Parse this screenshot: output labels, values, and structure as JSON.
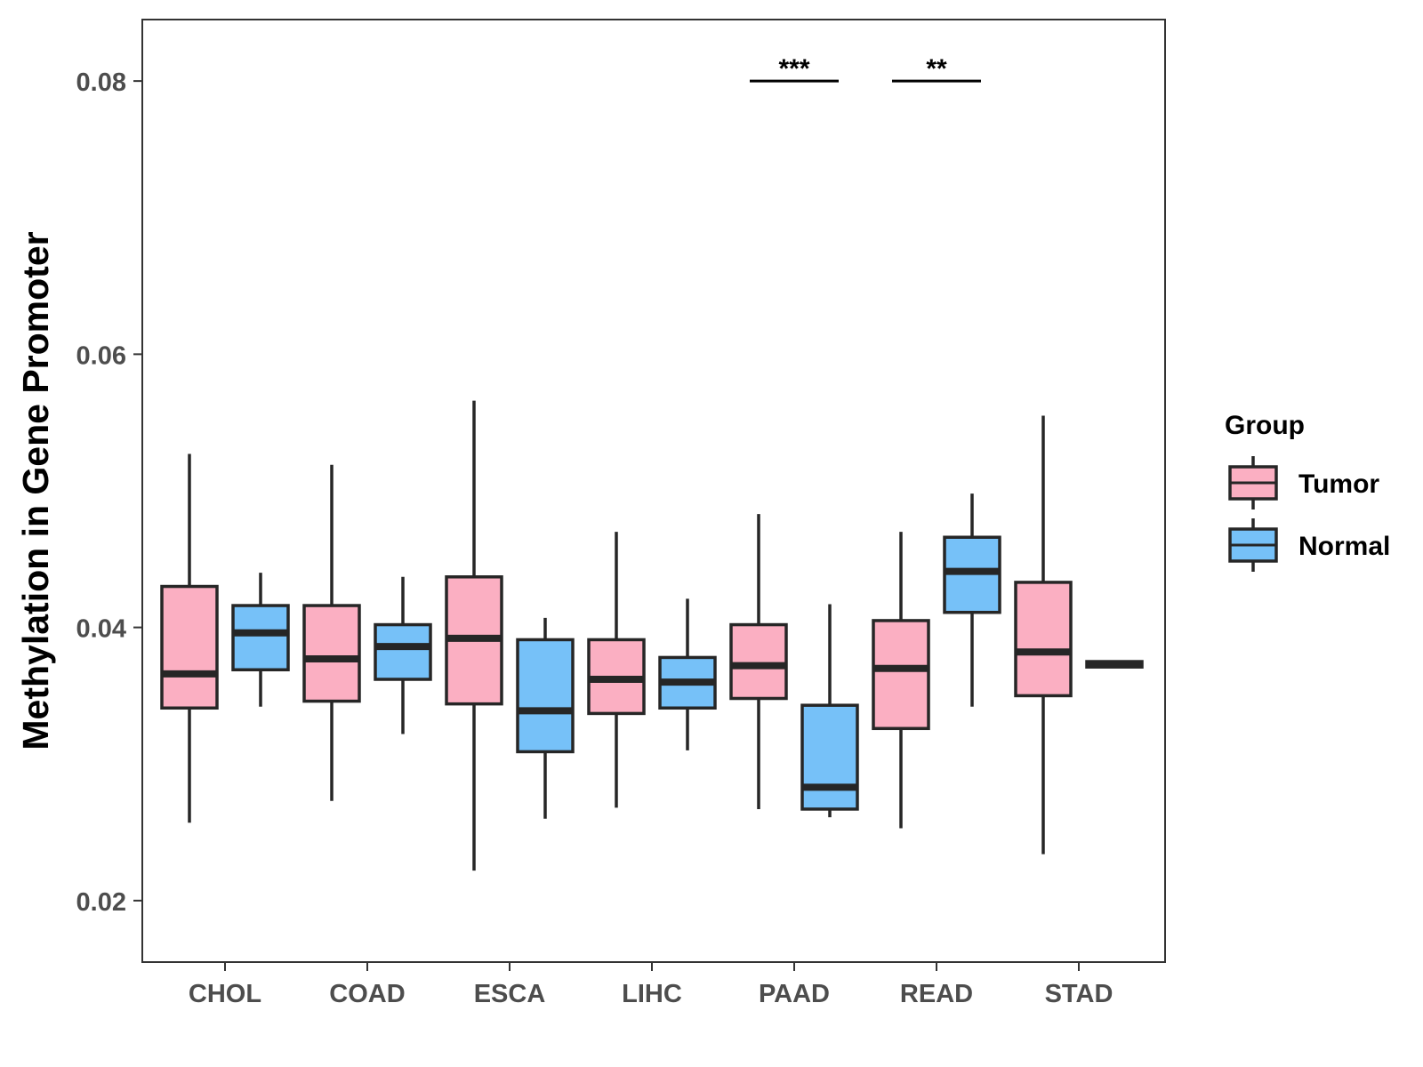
{
  "chart_data": {
    "type": "boxplot",
    "title": "",
    "xlabel": "",
    "ylabel": "Methylation in Gene Promoter",
    "ylim": [
      0.0155,
      0.0845
    ],
    "yticks": [
      0.02,
      0.04,
      0.06,
      0.08
    ],
    "ytick_labels": [
      "0.02",
      "0.04",
      "0.06",
      "0.08"
    ],
    "categories": [
      "CHOL",
      "COAD",
      "ESCA",
      "LIHC",
      "PAAD",
      "READ",
      "STAD"
    ],
    "grid": false,
    "legend": {
      "title": "Group",
      "position": "right",
      "entries": [
        {
          "name": "Tumor",
          "color": "#fbafc2"
        },
        {
          "name": "Normal",
          "color": "#76c1f8"
        }
      ]
    },
    "series": [
      {
        "name": "Tumor",
        "color": "#fbafc2",
        "boxes": [
          {
            "category": "CHOL",
            "whisker_low": 0.0257,
            "q1": 0.0341,
            "median": 0.0366,
            "q3": 0.043,
            "whisker_high": 0.0527
          },
          {
            "category": "COAD",
            "whisker_low": 0.0273,
            "q1": 0.0346,
            "median": 0.0377,
            "q3": 0.0416,
            "whisker_high": 0.0519
          },
          {
            "category": "ESCA",
            "whisker_low": 0.0222,
            "q1": 0.0344,
            "median": 0.0392,
            "q3": 0.0437,
            "whisker_high": 0.0566
          },
          {
            "category": "LIHC",
            "whisker_low": 0.0268,
            "q1": 0.0337,
            "median": 0.0362,
            "q3": 0.0391,
            "whisker_high": 0.047
          },
          {
            "category": "PAAD",
            "whisker_low": 0.0267,
            "q1": 0.0348,
            "median": 0.0372,
            "q3": 0.0402,
            "whisker_high": 0.0483
          },
          {
            "category": "READ",
            "whisker_low": 0.0253,
            "q1": 0.0326,
            "median": 0.037,
            "q3": 0.0405,
            "whisker_high": 0.047
          },
          {
            "category": "STAD",
            "whisker_low": 0.0234,
            "q1": 0.035,
            "median": 0.0382,
            "q3": 0.0433,
            "whisker_high": 0.0555
          }
        ]
      },
      {
        "name": "Normal",
        "color": "#76c1f8",
        "boxes": [
          {
            "category": "CHOL",
            "whisker_low": 0.0342,
            "q1": 0.0369,
            "median": 0.0396,
            "q3": 0.0416,
            "whisker_high": 0.044
          },
          {
            "category": "COAD",
            "whisker_low": 0.0322,
            "q1": 0.0362,
            "median": 0.0386,
            "q3": 0.0402,
            "whisker_high": 0.0437
          },
          {
            "category": "ESCA",
            "whisker_low": 0.026,
            "q1": 0.0309,
            "median": 0.0339,
            "q3": 0.0391,
            "whisker_high": 0.0407
          },
          {
            "category": "LIHC",
            "whisker_low": 0.031,
            "q1": 0.0341,
            "median": 0.036,
            "q3": 0.0378,
            "whisker_high": 0.0421
          },
          {
            "category": "PAAD",
            "whisker_low": 0.0261,
            "q1": 0.0267,
            "median": 0.0283,
            "q3": 0.0343,
            "whisker_high": 0.0417
          },
          {
            "category": "READ",
            "whisker_low": 0.0342,
            "q1": 0.0411,
            "median": 0.0441,
            "q3": 0.0466,
            "whisker_high": 0.0498
          },
          {
            "category": "STAD",
            "whisker_low": 0.0371,
            "q1": 0.0371,
            "median": 0.0373,
            "q3": 0.0375,
            "whisker_high": 0.0375
          }
        ]
      }
    ],
    "annotations": [
      {
        "category": "PAAD",
        "label": "***",
        "y": 0.08
      },
      {
        "category": "READ",
        "label": "**",
        "y": 0.08
      }
    ]
  }
}
